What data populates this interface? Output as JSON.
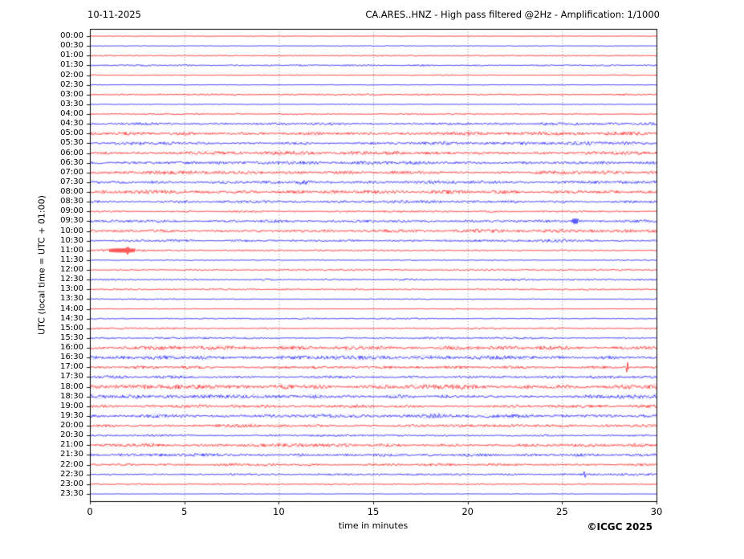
{
  "header": {
    "date": "10-11-2025",
    "title": "CA.ARES..HNZ - High pass filtered @2Hz - Amplification: 1/1000"
  },
  "footer": {
    "credit": "©ICGC 2025"
  },
  "chart_data": {
    "type": "line",
    "subtype": "helicorder-day-plot",
    "date": "10-11-2025",
    "title": "CA.ARES..HNZ - High pass filtered @2Hz - Amplification: 1/1000",
    "station": "CA.ARES..HNZ",
    "filter": "High pass filtered @2Hz",
    "amplification": "1/1000",
    "xlabel": "time in minutes",
    "ylabel": "UTC (local time = UTC + 01:00)",
    "xlim": [
      0,
      30
    ],
    "x_ticks": [
      0,
      5,
      10,
      15,
      20,
      25,
      30
    ],
    "minutes_per_line": 30,
    "grid": {
      "vertical_dotted_every_min": 5,
      "horizontal": false
    },
    "colors": {
      "hour_trace": "#ff0000",
      "half_hour_trace": "#0000ff",
      "frame": "#000000",
      "grid": "#666666",
      "text": "#000000"
    },
    "rows": [
      {
        "label": "00:00",
        "color": "red",
        "amp": 0.4,
        "events": []
      },
      {
        "label": "00:30",
        "color": "blue",
        "amp": 0.5,
        "events": []
      },
      {
        "label": "01:00",
        "color": "red",
        "amp": 0.7,
        "events": []
      },
      {
        "label": "01:30",
        "color": "blue",
        "amp": 0.9,
        "events": []
      },
      {
        "label": "02:00",
        "color": "red",
        "amp": 0.6,
        "events": []
      },
      {
        "label": "02:30",
        "color": "blue",
        "amp": 0.5,
        "events": []
      },
      {
        "label": "03:00",
        "color": "red",
        "amp": 0.9,
        "events": []
      },
      {
        "label": "03:30",
        "color": "blue",
        "amp": 0.5,
        "events": []
      },
      {
        "label": "04:00",
        "color": "red",
        "amp": 0.9,
        "events": []
      },
      {
        "label": "04:30",
        "color": "blue",
        "amp": 1.5,
        "events": []
      },
      {
        "label": "05:00",
        "color": "red",
        "amp": 1.9,
        "events": []
      },
      {
        "label": "05:30",
        "color": "blue",
        "amp": 1.8,
        "events": []
      },
      {
        "label": "06:00",
        "color": "red",
        "amp": 1.9,
        "events": []
      },
      {
        "label": "06:30",
        "color": "blue",
        "amp": 1.8,
        "events": []
      },
      {
        "label": "07:00",
        "color": "red",
        "amp": 1.9,
        "events": []
      },
      {
        "label": "07:30",
        "color": "blue",
        "amp": 1.8,
        "events": [
          {
            "t": 11.4,
            "dur": 0.8,
            "amp": 1.2
          }
        ]
      },
      {
        "label": "08:00",
        "color": "red",
        "amp": 2.0,
        "events": []
      },
      {
        "label": "08:30",
        "color": "blue",
        "amp": 1.5,
        "events": []
      },
      {
        "label": "09:00",
        "color": "red",
        "amp": 1.1,
        "events": []
      },
      {
        "label": "09:30",
        "color": "blue",
        "amp": 1.5,
        "events": [
          {
            "t": 25.7,
            "dur": 0.6,
            "amp": 1.6
          }
        ]
      },
      {
        "label": "10:00",
        "color": "red",
        "amp": 1.8,
        "events": [
          {
            "t": 3.8,
            "dur": 1.2,
            "amp": 0.9
          },
          {
            "t": 20.8,
            "dur": 1.6,
            "amp": 1.1
          }
        ]
      },
      {
        "label": "10:30",
        "color": "blue",
        "amp": 1.3,
        "events": [
          {
            "t": 24.5,
            "dur": 2.5,
            "amp": 0.7
          }
        ]
      },
      {
        "label": "11:00",
        "color": "red",
        "amp": 0.8,
        "events": [
          {
            "t": 1.7,
            "dur": 1.8,
            "amp": 2.2,
            "note": "noise burst"
          },
          {
            "t": 2.0,
            "dur": 0.12,
            "amp": 2.6,
            "note": "small event spike"
          }
        ]
      },
      {
        "label": "11:30",
        "color": "blue",
        "amp": 0.6,
        "events": []
      },
      {
        "label": "12:00",
        "color": "red",
        "amp": 0.8,
        "events": []
      },
      {
        "label": "12:30",
        "color": "blue",
        "amp": 1.0,
        "events": []
      },
      {
        "label": "13:00",
        "color": "red",
        "amp": 0.9,
        "events": []
      },
      {
        "label": "13:30",
        "color": "blue",
        "amp": 0.7,
        "events": []
      },
      {
        "label": "14:00",
        "color": "red",
        "amp": 0.5,
        "events": []
      },
      {
        "label": "14:30",
        "color": "blue",
        "amp": 0.8,
        "events": []
      },
      {
        "label": "15:00",
        "color": "red",
        "amp": 0.9,
        "events": []
      },
      {
        "label": "15:30",
        "color": "blue",
        "amp": 1.2,
        "events": []
      },
      {
        "label": "16:00",
        "color": "red",
        "amp": 2.1,
        "events": []
      },
      {
        "label": "16:30",
        "color": "blue",
        "amp": 2.1,
        "events": []
      },
      {
        "label": "17:00",
        "color": "red",
        "amp": 1.6,
        "events": [
          {
            "t": 28.45,
            "dur": 0.1,
            "amp": 6.0,
            "note": "sharp event spike"
          }
        ]
      },
      {
        "label": "17:30",
        "color": "blue",
        "amp": 1.5,
        "events": [
          {
            "t": 0.8,
            "dur": 1.5,
            "amp": 0.8
          }
        ]
      },
      {
        "label": "18:00",
        "color": "red",
        "amp": 2.5,
        "events": []
      },
      {
        "label": "18:30",
        "color": "blue",
        "amp": 2.1,
        "events": [
          {
            "t": 3.5,
            "dur": 3.0,
            "amp": 0.6
          }
        ]
      },
      {
        "label": "19:00",
        "color": "red",
        "amp": 1.8,
        "events": []
      },
      {
        "label": "19:30",
        "color": "blue",
        "amp": 2.0,
        "events": [
          {
            "t": 19.0,
            "dur": 2.0,
            "amp": 0.7
          }
        ]
      },
      {
        "label": "20:00",
        "color": "red",
        "amp": 1.7,
        "events": []
      },
      {
        "label": "20:30",
        "color": "blue",
        "amp": 1.2,
        "events": []
      },
      {
        "label": "21:00",
        "color": "red",
        "amp": 1.8,
        "events": []
      },
      {
        "label": "21:30",
        "color": "blue",
        "amp": 1.6,
        "events": [
          {
            "t": 6.0,
            "dur": 2.0,
            "amp": 0.9
          }
        ]
      },
      {
        "label": "22:00",
        "color": "red",
        "amp": 1.4,
        "events": []
      },
      {
        "label": "22:30",
        "color": "blue",
        "amp": 1.2,
        "events": [
          {
            "t": 26.2,
            "dur": 0.12,
            "amp": 2.4,
            "note": "small spike"
          }
        ]
      },
      {
        "label": "23:00",
        "color": "red",
        "amp": 0.8,
        "events": []
      },
      {
        "label": "23:30",
        "color": "blue",
        "amp": 0.4,
        "events": []
      }
    ]
  }
}
